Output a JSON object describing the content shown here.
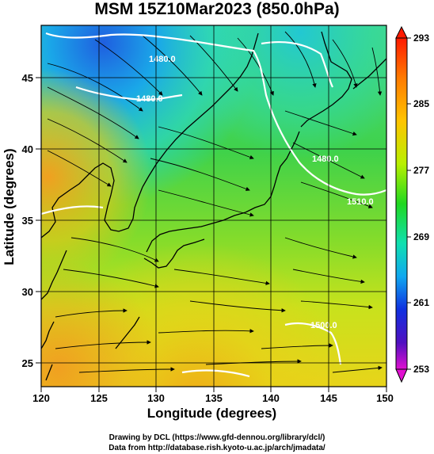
{
  "title": "MSM 15Z10Mar2023 (850.0hPa)",
  "x_axis": {
    "label": "Longitude (degrees)",
    "ticks": [
      "120",
      "125",
      "130",
      "135",
      "140",
      "145",
      "150"
    ]
  },
  "y_axis": {
    "label": "Latitude  (degrees)",
    "ticks": [
      "25",
      "30",
      "35",
      "40",
      "45"
    ]
  },
  "colorbar": {
    "ticks": [
      "293",
      "285",
      "277",
      "269",
      "261",
      "253"
    ],
    "min": 253,
    "max": 293
  },
  "contours": [
    {
      "label": "1480.0"
    },
    {
      "label": "1480.0"
    },
    {
      "label": "1480.0"
    },
    {
      "label": "1510.0"
    },
    {
      "label": "1500.0"
    }
  ],
  "credits": {
    "line1": "Drawing by DCL (https://www.gfd-dennou.org/library/dcl/)",
    "line2": "Data from http://database.rish.kyoto-u.ac.jp/arch/jmadata/"
  }
}
